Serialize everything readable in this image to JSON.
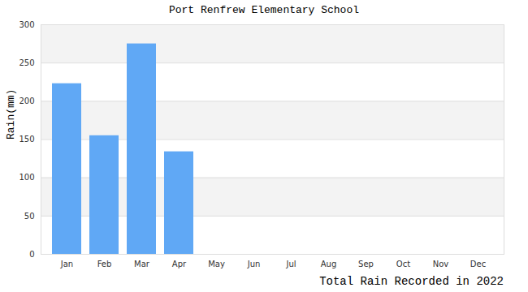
{
  "chart_data": {
    "type": "bar",
    "title": "Port Renfrew Elementary School",
    "caption": "Total Rain Recorded in 2022",
    "y_label": "Rain(mm)",
    "categories": [
      "Jan",
      "Feb",
      "Mar",
      "Apr",
      "May",
      "Jun",
      "Jul",
      "Aug",
      "Sep",
      "Oct",
      "Nov",
      "Dec"
    ],
    "values": [
      223,
      155,
      275,
      134,
      null,
      null,
      null,
      null,
      null,
      null,
      null,
      null
    ],
    "color": "#60a8f5",
    "ylim": [
      0,
      300
    ],
    "yticks": [
      0,
      50,
      100,
      150,
      200,
      250,
      300
    ],
    "grid": true
  }
}
